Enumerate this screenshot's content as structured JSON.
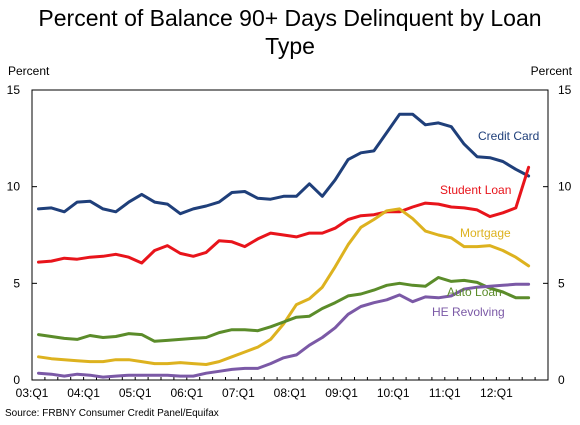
{
  "chart_data": {
    "type": "line",
    "title": "Percent of Balance 90+ Days Delinquent by Loan Type",
    "title_lines": [
      "Percent of Balance 90+ Days Delinquent by Loan",
      "Type"
    ],
    "ylabel_left": "Percent",
    "ylabel_right": "Percent",
    "source": "Source: FRBNY Consumer Credit Panel/Equifax",
    "ylim": [
      0,
      15
    ],
    "yticks": [
      0,
      5,
      10,
      15
    ],
    "x_tick_labels": [
      "03:Q1",
      "04:Q1",
      "05:Q1",
      "06:Q1",
      "07:Q1",
      "08:Q1",
      "09:Q1",
      "10:Q1",
      "11:Q1",
      "12:Q1"
    ],
    "x_tick_positions": [
      0,
      4,
      8,
      12,
      16,
      20,
      24,
      28,
      32,
      36
    ],
    "x_count": 40,
    "grid": false,
    "series": [
      {
        "name": "Credit Card",
        "color": "#1F3F7A",
        "values": [
          8.85,
          8.9,
          8.7,
          9.2,
          9.25,
          8.85,
          8.7,
          9.2,
          9.6,
          9.2,
          9.1,
          8.6,
          8.85,
          9.0,
          9.2,
          9.7,
          9.75,
          9.4,
          9.35,
          9.5,
          9.5,
          10.15,
          9.5,
          10.35,
          11.4,
          11.75,
          11.85,
          12.8,
          13.75,
          13.75,
          13.2,
          13.3,
          13.1,
          12.2,
          11.55,
          11.5,
          11.3,
          10.9,
          10.55
        ]
      },
      {
        "name": "Student Loan",
        "color": "#E8141B",
        "values": [
          6.1,
          6.15,
          6.3,
          6.25,
          6.35,
          6.4,
          6.5,
          6.35,
          6.05,
          6.7,
          6.95,
          6.55,
          6.4,
          6.6,
          7.2,
          7.15,
          6.9,
          7.3,
          7.6,
          7.5,
          7.4,
          7.6,
          7.6,
          7.85,
          8.3,
          8.5,
          8.55,
          8.7,
          8.7,
          8.95,
          9.15,
          9.1,
          8.95,
          8.9,
          8.8,
          8.45,
          8.65,
          8.9,
          11.0
        ]
      },
      {
        "name": "Mortgage",
        "color": "#DDB21F",
        "values": [
          1.2,
          1.1,
          1.05,
          1.0,
          0.95,
          0.95,
          1.05,
          1.05,
          0.95,
          0.85,
          0.85,
          0.9,
          0.85,
          0.8,
          0.95,
          1.2,
          1.45,
          1.7,
          2.1,
          2.9,
          3.9,
          4.2,
          4.8,
          5.85,
          7.0,
          7.9,
          8.3,
          8.75,
          8.85,
          8.35,
          7.7,
          7.5,
          7.35,
          6.9,
          6.9,
          6.95,
          6.7,
          6.35,
          5.9
        ]
      },
      {
        "name": "Auto Loan",
        "color": "#5B8C2A",
        "values": [
          2.35,
          2.25,
          2.15,
          2.1,
          2.3,
          2.2,
          2.25,
          2.4,
          2.35,
          2.0,
          2.05,
          2.1,
          2.15,
          2.2,
          2.45,
          2.6,
          2.6,
          2.55,
          2.75,
          3.0,
          3.25,
          3.3,
          3.7,
          4.0,
          4.35,
          4.45,
          4.65,
          4.9,
          5.0,
          4.9,
          4.85,
          5.3,
          5.1,
          5.15,
          5.05,
          4.75,
          4.55,
          4.25,
          4.25
        ]
      },
      {
        "name": "HE Revolving",
        "color": "#7B59A6",
        "values": [
          0.35,
          0.3,
          0.2,
          0.3,
          0.25,
          0.15,
          0.2,
          0.25,
          0.25,
          0.25,
          0.25,
          0.2,
          0.2,
          0.35,
          0.45,
          0.55,
          0.6,
          0.6,
          0.85,
          1.15,
          1.3,
          1.8,
          2.2,
          2.7,
          3.4,
          3.8,
          4.0,
          4.15,
          4.4,
          4.05,
          4.3,
          4.25,
          4.35,
          4.7,
          4.8,
          4.85,
          4.9,
          4.95,
          4.95
        ]
      }
    ]
  }
}
